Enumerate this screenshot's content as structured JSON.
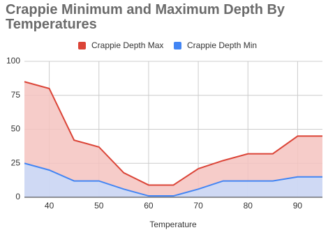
{
  "chart_data": {
    "type": "area",
    "title": "Crappie Minimum and Maximum Depth By Temperatures",
    "x_label": "Temperature",
    "x": [
      35,
      40,
      45,
      50,
      55,
      60,
      65,
      70,
      75,
      80,
      85,
      90,
      95
    ],
    "series": [
      {
        "name": "Crappie Depth Max",
        "color": "#db4437",
        "fill": "#f5c3bf",
        "values": [
          85,
          80,
          42,
          37,
          18,
          9,
          9,
          21,
          27,
          32,
          32,
          45,
          45
        ]
      },
      {
        "name": "Crappie Depth Min",
        "color": "#4285f4",
        "fill": "#c8dafb",
        "values": [
          25,
          20,
          12,
          12,
          6,
          1,
          1,
          6,
          12,
          12,
          12,
          15,
          15
        ]
      }
    ],
    "xlim": [
      35,
      95
    ],
    "xticks": [
      40,
      50,
      60,
      70,
      80,
      90
    ],
    "ylim": [
      0,
      100
    ],
    "yticks": [
      0,
      25,
      50,
      75,
      100
    ],
    "grid": true
  }
}
